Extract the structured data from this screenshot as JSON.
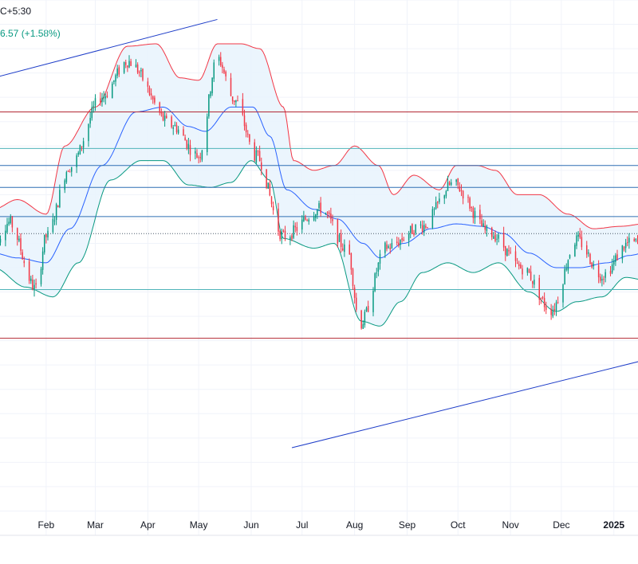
{
  "header": {
    "timezone_text": "C+5:30",
    "change_text": "6.57 (+1.58%)"
  },
  "colors": {
    "up": "#089981",
    "down": "#f23645",
    "bb_upper": "#f23645",
    "bb_basis": "#2962ff",
    "bb_lower": "#089981",
    "bb_fill": "#e9f4fd",
    "trend": "#1e3dc8",
    "hline_red": "#b22833",
    "hline_blue": "#2f6fb3",
    "hline_teal": "#4fb3b8",
    "grid": "#f0f3fa",
    "axis_text": "#131722",
    "last_price_dotted": "#4a5a6a"
  },
  "chart_data": {
    "type": "candlestick",
    "title": "",
    "x_axis": {
      "start_date": "2024-01-01",
      "end_date": "2025-01-19",
      "tick_labels": [
        {
          "label": "Feb",
          "date": "2024-02-01"
        },
        {
          "label": "Mar",
          "date": "2024-03-01"
        },
        {
          "label": "Apr",
          "date": "2024-04-01"
        },
        {
          "label": "May",
          "date": "2024-05-01"
        },
        {
          "label": "Jun",
          "date": "2024-06-01"
        },
        {
          "label": "Jul",
          "date": "2024-07-01"
        },
        {
          "label": "Aug",
          "date": "2024-08-01"
        },
        {
          "label": "Sep",
          "date": "2024-09-01"
        },
        {
          "label": "Oct",
          "date": "2024-10-01"
        },
        {
          "label": "Nov",
          "date": "2024-11-01"
        },
        {
          "label": "Dec",
          "date": "2024-12-01"
        },
        {
          "label": "2025",
          "date": "2025-01-01",
          "bold": true
        }
      ]
    },
    "y_range": [
      370,
      480
    ],
    "grid": true,
    "series": [
      {
        "name": "",
        "type": "candlestick",
        "anchors": [
          [
            "2024-01-01",
            430.0
          ],
          [
            "2024-01-10",
            434.3
          ],
          [
            "2024-01-26",
            420.6
          ],
          [
            "2024-02-01",
            431.4
          ],
          [
            "2024-02-15",
            445.8
          ],
          [
            "2024-03-05",
            460.2
          ],
          [
            "2024-03-20",
            467.4
          ],
          [
            "2024-04-15",
            454.3
          ],
          [
            "2024-05-01",
            448.0
          ],
          [
            "2024-05-12",
            468.1
          ],
          [
            "2024-05-22",
            459.5
          ],
          [
            "2024-06-04",
            447.9
          ],
          [
            "2024-06-20",
            431.4
          ],
          [
            "2024-07-12",
            437.1
          ],
          [
            "2024-07-28",
            428.5
          ],
          [
            "2024-08-04",
            413.3
          ],
          [
            "2024-08-20",
            429.2
          ],
          [
            "2024-09-10",
            433.6
          ],
          [
            "2024-09-28",
            442.2
          ],
          [
            "2024-10-20",
            432.1
          ],
          [
            "2024-11-08",
            424.9
          ],
          [
            "2024-11-25",
            416.3
          ],
          [
            "2024-12-10",
            430.7
          ],
          [
            "2024-12-25",
            423.5
          ],
          [
            "2025-01-10",
            430.0
          ],
          [
            "2025-01-19",
            430.2
          ]
        ],
        "daily_range": 2.6,
        "candle_count": 265
      },
      {
        "name": "",
        "kind": "bollinger_upper",
        "anchors": [
          [
            "2024-01-01",
            437
          ],
          [
            "2024-01-15",
            439
          ],
          [
            "2024-02-01",
            436
          ],
          [
            "2024-02-12",
            450
          ],
          [
            "2024-03-01",
            458
          ],
          [
            "2024-03-20",
            470.5
          ],
          [
            "2024-04-06",
            471
          ],
          [
            "2024-04-20",
            464
          ],
          [
            "2024-05-01",
            463.5
          ],
          [
            "2024-05-12",
            471
          ],
          [
            "2024-05-26",
            471
          ],
          [
            "2024-06-06",
            470
          ],
          [
            "2024-06-20",
            458
          ],
          [
            "2024-06-26",
            447
          ],
          [
            "2024-07-08",
            445
          ],
          [
            "2024-07-20",
            446
          ],
          [
            "2024-08-01",
            450
          ],
          [
            "2024-08-15",
            446
          ],
          [
            "2024-08-24",
            440
          ],
          [
            "2024-09-05",
            444
          ],
          [
            "2024-09-20",
            441
          ],
          [
            "2024-09-30",
            446
          ],
          [
            "2024-10-12",
            446
          ],
          [
            "2024-10-23",
            445
          ],
          [
            "2024-11-05",
            440
          ],
          [
            "2024-11-18",
            440
          ],
          [
            "2024-12-05",
            436
          ],
          [
            "2024-12-20",
            433
          ],
          [
            "2025-01-05",
            433.5
          ],
          [
            "2025-01-19",
            434
          ]
        ]
      },
      {
        "name": "",
        "kind": "bollinger_basis",
        "anchors": [
          [
            "2024-01-01",
            428
          ],
          [
            "2024-01-15",
            427
          ],
          [
            "2024-02-01",
            426
          ],
          [
            "2024-02-15",
            433
          ],
          [
            "2024-03-05",
            446
          ],
          [
            "2024-03-25",
            457
          ],
          [
            "2024-04-10",
            458
          ],
          [
            "2024-04-25",
            454
          ],
          [
            "2024-05-05",
            453
          ],
          [
            "2024-05-20",
            458
          ],
          [
            "2024-06-02",
            458
          ],
          [
            "2024-06-12",
            452
          ],
          [
            "2024-06-22",
            441
          ],
          [
            "2024-07-08",
            437
          ],
          [
            "2024-07-22",
            435
          ],
          [
            "2024-08-06",
            430
          ],
          [
            "2024-08-16",
            427
          ],
          [
            "2024-08-30",
            430
          ],
          [
            "2024-09-15",
            433
          ],
          [
            "2024-09-30",
            434
          ],
          [
            "2024-10-15",
            433.5
          ],
          [
            "2024-10-28",
            432
          ],
          [
            "2024-11-12",
            428
          ],
          [
            "2024-11-28",
            425
          ],
          [
            "2024-12-12",
            425
          ],
          [
            "2024-12-28",
            426
          ],
          [
            "2025-01-10",
            427.5
          ],
          [
            "2025-01-19",
            428
          ]
        ]
      },
      {
        "name": "",
        "kind": "bollinger_lower",
        "anchors": [
          [
            "2024-01-01",
            425
          ],
          [
            "2024-01-20",
            421
          ],
          [
            "2024-02-05",
            419
          ],
          [
            "2024-02-20",
            426
          ],
          [
            "2024-03-10",
            443
          ],
          [
            "2024-03-28",
            447
          ],
          [
            "2024-04-10",
            447
          ],
          [
            "2024-04-25",
            442
          ],
          [
            "2024-05-08",
            441.5
          ],
          [
            "2024-05-20",
            442.5
          ],
          [
            "2024-06-01",
            447
          ],
          [
            "2024-06-12",
            443
          ],
          [
            "2024-06-20",
            431
          ],
          [
            "2024-07-08",
            429
          ],
          [
            "2024-07-20",
            430
          ],
          [
            "2024-08-05",
            414
          ],
          [
            "2024-08-16",
            413
          ],
          [
            "2024-08-28",
            418
          ],
          [
            "2024-09-10",
            424
          ],
          [
            "2024-09-25",
            426
          ],
          [
            "2024-10-10",
            424
          ],
          [
            "2024-10-25",
            426
          ],
          [
            "2024-11-12",
            420
          ],
          [
            "2024-11-28",
            416
          ],
          [
            "2024-12-10",
            418
          ],
          [
            "2024-12-25",
            419
          ],
          [
            "2025-01-08",
            423
          ],
          [
            "2025-01-19",
            422.5
          ]
        ]
      }
    ],
    "horizontal_lines": [
      {
        "price": 457.0,
        "color": "hline_red"
      },
      {
        "price": 449.5,
        "color": "hline_teal"
      },
      {
        "price": 446.0,
        "color": "hline_blue"
      },
      {
        "price": 441.5,
        "color": "hline_blue"
      },
      {
        "price": 435.5,
        "color": "hline_blue"
      },
      {
        "price": 432.0,
        "color": "last_price_dotted",
        "dotted": true
      },
      {
        "price": 420.5,
        "color": "hline_teal"
      },
      {
        "price": 410.5,
        "color": "hline_red"
      }
    ],
    "trend_lines": [
      {
        "from": [
          "2024-01-01",
          464.0
        ],
        "to": [
          "2024-05-12",
          476.0
        ]
      },
      {
        "from": [
          "2024-06-25",
          388.0
        ],
        "to": [
          "2025-01-19",
          406.0
        ]
      }
    ]
  }
}
